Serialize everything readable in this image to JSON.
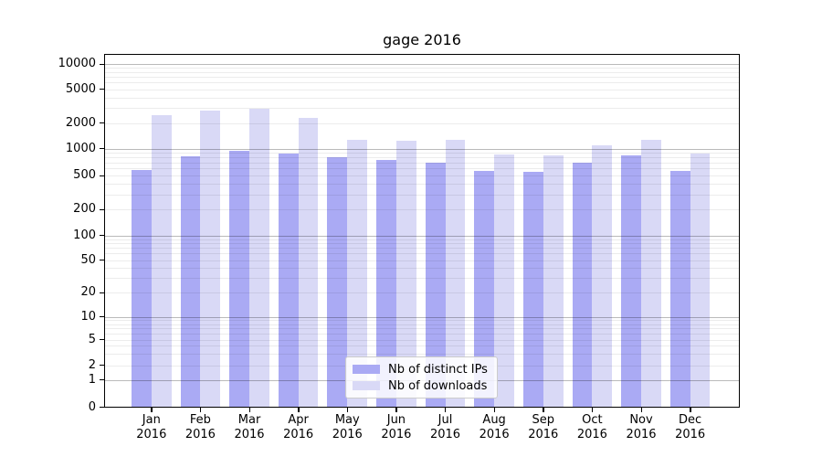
{
  "chart_data": {
    "type": "bar",
    "title": "gage 2016",
    "y_scale": "symlog",
    "grid": {
      "horizontal": true,
      "minor_log_gridlines": true,
      "major_color": "#bdbdbd",
      "minor_color": "#ececec"
    },
    "categories": [
      "Jan",
      "Feb",
      "Mar",
      "Apr",
      "May",
      "Jun",
      "Jul",
      "Aug",
      "Sep",
      "Oct",
      "Nov",
      "Dec"
    ],
    "x_tick_year": "2016",
    "y_ticks": [
      0,
      1,
      2,
      5,
      10,
      20,
      50,
      100,
      200,
      500,
      1000,
      2000,
      5000,
      10000
    ],
    "ylim": [
      0,
      12800
    ],
    "series": [
      {
        "name": "Nb of distinct IPs",
        "color": "#aaaaf4",
        "values": [
          570,
          810,
          945,
          870,
          805,
          740,
          690,
          560,
          555,
          690,
          835,
          560
        ]
      },
      {
        "name": "Nb of downloads",
        "color": "#d9d9f6",
        "values": [
          2450,
          2800,
          2950,
          2300,
          1250,
          1220,
          1250,
          850,
          830,
          1100,
          1280,
          880
        ]
      }
    ],
    "legend": {
      "position": "lower center",
      "entries": [
        "Nb of distinct IPs",
        "Nb of downloads"
      ]
    }
  }
}
